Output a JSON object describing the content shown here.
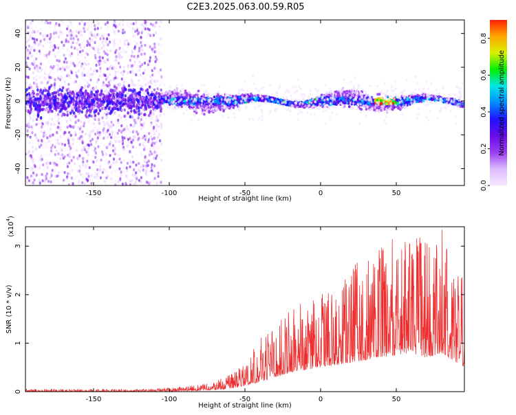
{
  "title": "C2E3.2025.063.00.59.R05",
  "chart_data": [
    {
      "type": "heatmap",
      "title": "C2E3.2025.063.00.59.R05",
      "xlabel": "Height of straight line (km)",
      "ylabel": "Frequency (Hz)",
      "xlim": [
        -195,
        95
      ],
      "ylim": [
        -50,
        48
      ],
      "xticks": [
        -150,
        -100,
        -50,
        0,
        50
      ],
      "yticks": [
        -40,
        -20,
        0,
        20,
        40
      ],
      "colorbar": {
        "label": "Normalized spectral amplitude",
        "range": [
          0.0,
          0.9
        ],
        "ticks": [
          "0.0",
          "0.2",
          "0.4",
          "0.6",
          "0.8"
        ],
        "colormap": [
          "#f4e6ff",
          "#dcbcff",
          "#9b3cf0",
          "#6a0de8",
          "#1f12ff",
          "#008cff",
          "#00e6e6",
          "#00f000",
          "#d8f000",
          "#ffa800",
          "#ff2000"
        ]
      },
      "description_series": {
        "noisy_region_x": [
          -195,
          -105
        ],
        "band_region_x": [
          -105,
          95
        ],
        "band_center_hz": 0,
        "peak_amplitude_x": [
          35,
          50
        ]
      }
    },
    {
      "type": "line",
      "xlabel": "Height of straight line (km)",
      "ylabel": "SNR (10 * v/v)",
      "y_multiplier_label": "(x10",
      "y_multiplier_exp": "4",
      "y_multiplier_close": ")",
      "xlim": [
        -195,
        95
      ],
      "ylim": [
        0,
        3.4
      ],
      "xticks": [
        -150,
        -100,
        -50,
        0,
        50
      ],
      "yticks": [
        0,
        1,
        2,
        3
      ],
      "line_color": "#ee2e2e",
      "envelope": {
        "x": [
          -195,
          -120,
          -100,
          -80,
          -60,
          -50,
          -40,
          -30,
          -20,
          -10,
          0,
          10,
          20,
          30,
          40,
          50,
          60,
          70,
          80,
          90,
          95
        ],
        "peak": [
          0.06,
          0.05,
          0.08,
          0.15,
          0.35,
          0.6,
          1.1,
          1.4,
          1.7,
          1.9,
          2.0,
          2.3,
          2.7,
          2.9,
          3.0,
          3.2,
          3.3,
          3.1,
          3.4,
          2.6,
          2.3
        ],
        "base": [
          0.0,
          0.0,
          0.01,
          0.02,
          0.06,
          0.12,
          0.2,
          0.3,
          0.4,
          0.45,
          0.5,
          0.55,
          0.6,
          0.65,
          0.7,
          0.75,
          0.8,
          0.7,
          0.8,
          0.6,
          0.5
        ]
      }
    }
  ]
}
